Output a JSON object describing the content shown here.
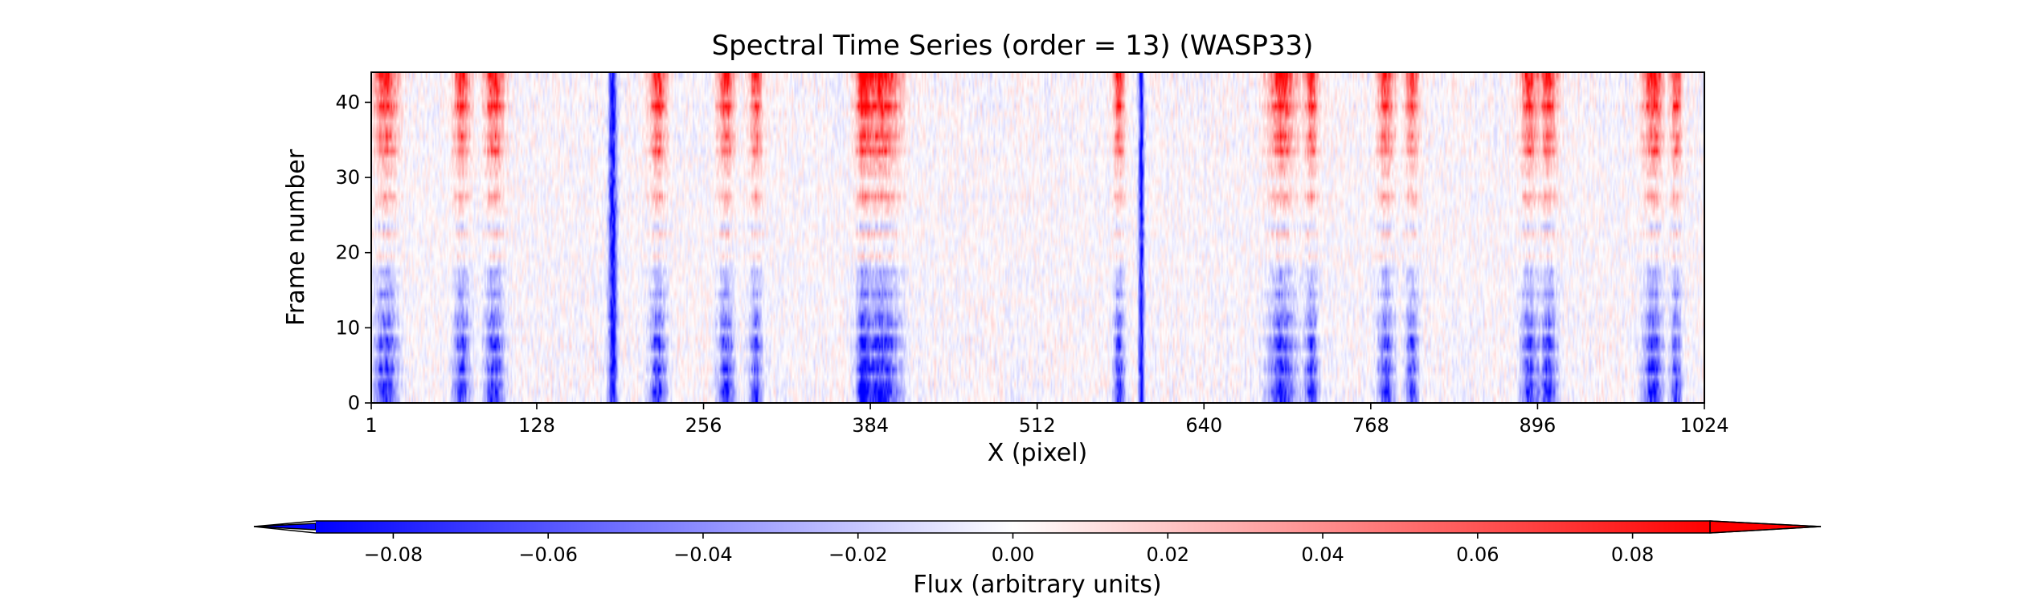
{
  "chart_data": {
    "type": "heatmap",
    "title": "Spectral Time Series (order = 13) (WASP33)",
    "xlabel": "X (pixel)",
    "ylabel": "Frame number",
    "xlim": [
      1,
      1024
    ],
    "ylim": [
      0,
      44
    ],
    "xticks": [
      1,
      128,
      256,
      384,
      512,
      640,
      768,
      896,
      1024
    ],
    "yticks": [
      0,
      10,
      20,
      30,
      40
    ],
    "n_frames": 44,
    "colormap": "bwr",
    "colors": {
      "min": "#0000ff",
      "mid": "#ffffff",
      "max": "#ff0000"
    },
    "colorbar": {
      "label": "Flux (arbitrary units)",
      "range": [
        -0.09,
        0.09
      ],
      "extend": "both",
      "orientation": "horizontal",
      "ticks": [
        "−0.08",
        "−0.06",
        "−0.04",
        "−0.02",
        "0.00",
        "0.02",
        "0.04",
        "0.06",
        "0.08"
      ],
      "tick_values": [
        -0.08,
        -0.06,
        -0.04,
        -0.02,
        0.0,
        0.02,
        0.04,
        0.06,
        0.08
      ]
    },
    "lines": [
      {
        "x": 12,
        "width": 8,
        "pattern": "mid",
        "amp": 0.085
      },
      {
        "x": 70,
        "width": 6,
        "pattern": "mid",
        "amp": 0.08
      },
      {
        "x": 95,
        "width": 7,
        "pattern": "mid",
        "amp": 0.085
      },
      {
        "x": 186,
        "width": 3,
        "pattern": "neg",
        "amp": 0.09
      },
      {
        "x": 221,
        "width": 6,
        "pattern": "mid",
        "amp": 0.085
      },
      {
        "x": 273,
        "width": 6,
        "pattern": "mid",
        "amp": 0.08
      },
      {
        "x": 296,
        "width": 5,
        "pattern": "mid",
        "amp": 0.07
      },
      {
        "x": 378,
        "width": 4,
        "pattern": "mid",
        "amp": 0.08
      },
      {
        "x": 392,
        "width": 14,
        "pattern": "mid",
        "amp": 0.09
      },
      {
        "x": 575,
        "width": 4,
        "pattern": "mid",
        "amp": 0.08
      },
      {
        "x": 592,
        "width": 2,
        "pattern": "neg",
        "amp": 0.09
      },
      {
        "x": 700,
        "width": 10,
        "pattern": "mid",
        "amp": 0.085
      },
      {
        "x": 723,
        "width": 5,
        "pattern": "mid",
        "amp": 0.075
      },
      {
        "x": 780,
        "width": 6,
        "pattern": "mid",
        "amp": 0.075
      },
      {
        "x": 800,
        "width": 5,
        "pattern": "mid",
        "amp": 0.07
      },
      {
        "x": 890,
        "width": 6,
        "pattern": "mid",
        "amp": 0.08
      },
      {
        "x": 905,
        "width": 6,
        "pattern": "mid",
        "amp": 0.08
      },
      {
        "x": 985,
        "width": 7,
        "pattern": "mid",
        "amp": 0.085
      },
      {
        "x": 1003,
        "width": 4,
        "pattern": "mid",
        "amp": 0.075
      }
    ]
  }
}
